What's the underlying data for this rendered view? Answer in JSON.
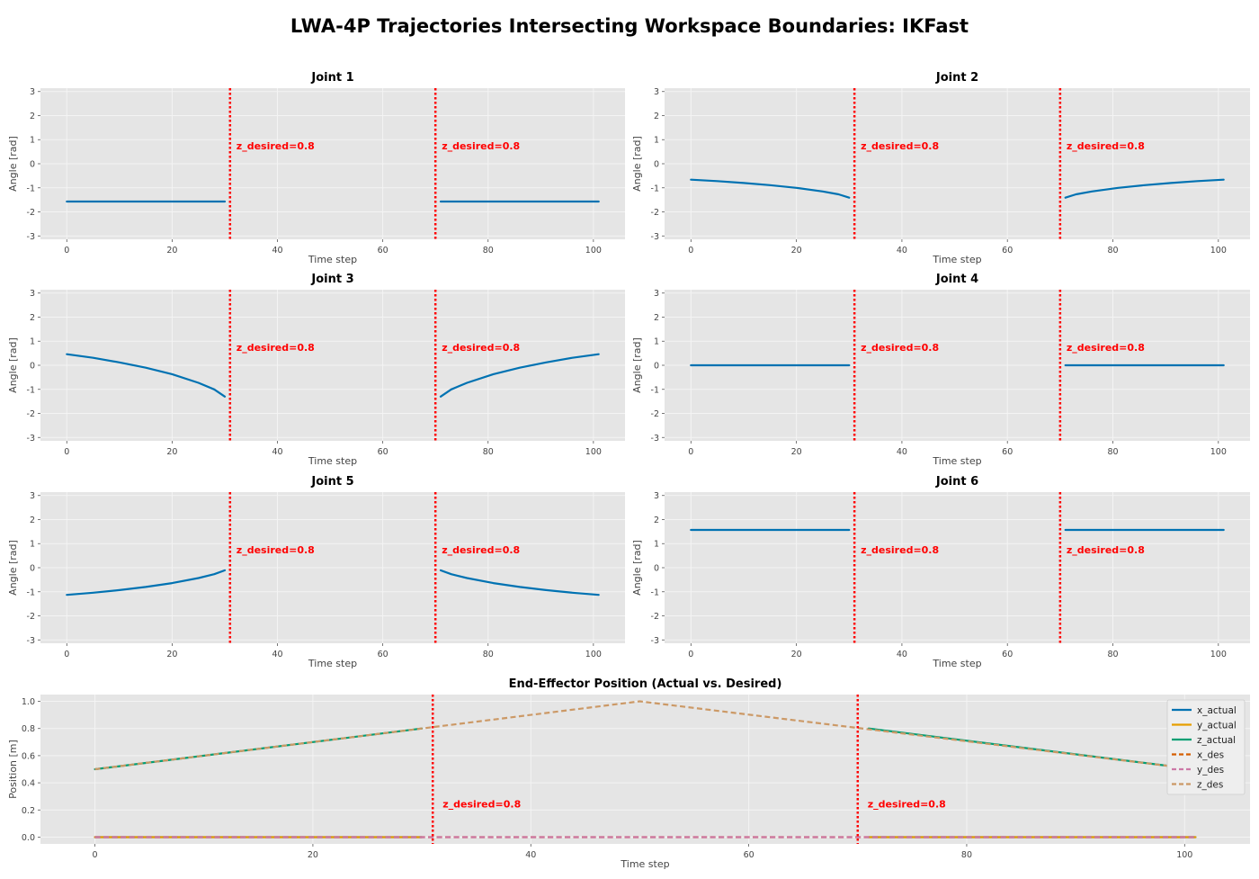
{
  "title": "LWA-4P Trajectories Intersecting Workspace Boundaries: IKFast",
  "colors": {
    "axes_bg": "#e5e5e5",
    "grid": "#f4f4f4",
    "actual": "#0072b2",
    "boundary": "#ff0000",
    "x_actual": "#0072b2",
    "y_actual": "#e69f00",
    "z_actual": "#009e73",
    "x_des": "#d55e00",
    "y_des": "#cc79a7",
    "z_des": "#cc9966"
  },
  "chart_data": [
    {
      "type": "line",
      "title": "Joint 1",
      "xlabel": "Time step",
      "ylabel": "Angle [rad]",
      "xlim": [
        -5,
        106
      ],
      "ylim": [
        -3.14,
        3.14
      ],
      "xticks": [
        0,
        20,
        40,
        60,
        80,
        100
      ],
      "yticks": [
        3,
        2,
        1,
        0,
        -1,
        -2,
        -3
      ],
      "grid": true,
      "boundaries": [
        {
          "x": 31,
          "label": "z_desired=0.8"
        },
        {
          "x": 70,
          "label": "z_desired=0.8"
        }
      ],
      "series": [
        {
          "segments": [
            {
              "x": [
                0,
                30
              ],
              "y": [
                -1.57,
                -1.57
              ]
            },
            {
              "x": [
                71,
                101
              ],
              "y": [
                -1.57,
                -1.57
              ]
            }
          ]
        }
      ]
    },
    {
      "type": "line",
      "title": "Joint 2",
      "xlabel": "Time step",
      "ylabel": "Angle [rad]",
      "xlim": [
        -5,
        106
      ],
      "ylim": [
        -3.14,
        3.14
      ],
      "xticks": [
        0,
        20,
        40,
        60,
        80,
        100
      ],
      "yticks": [
        3,
        2,
        1,
        0,
        -1,
        -2,
        -3
      ],
      "grid": true,
      "boundaries": [
        {
          "x": 31,
          "label": "z_desired=0.8"
        },
        {
          "x": 70,
          "label": "z_desired=0.8"
        }
      ],
      "series": [
        {
          "segments": [
            {
              "x": [
                0,
                5,
                10,
                15,
                20,
                25,
                28,
                30
              ],
              "y": [
                -0.66,
                -0.72,
                -0.8,
                -0.89,
                -1.0,
                -1.15,
                -1.27,
                -1.41
              ]
            },
            {
              "x": [
                71,
                73,
                76,
                81,
                86,
                91,
                96,
                101
              ],
              "y": [
                -1.41,
                -1.27,
                -1.15,
                -1.0,
                -0.89,
                -0.8,
                -0.72,
                -0.66
              ]
            }
          ]
        }
      ]
    },
    {
      "type": "line",
      "title": "Joint 3",
      "xlabel": "Time step",
      "ylabel": "Angle [rad]",
      "xlim": [
        -5,
        106
      ],
      "ylim": [
        -3.14,
        3.14
      ],
      "xticks": [
        0,
        20,
        40,
        60,
        80,
        100
      ],
      "yticks": [
        3,
        2,
        1,
        0,
        -1,
        -2,
        -3
      ],
      "grid": true,
      "boundaries": [
        {
          "x": 31,
          "label": "z_desired=0.8"
        },
        {
          "x": 70,
          "label": "z_desired=0.8"
        }
      ],
      "series": [
        {
          "segments": [
            {
              "x": [
                0,
                5,
                10,
                15,
                20,
                25,
                28,
                30
              ],
              "y": [
                0.46,
                0.31,
                0.12,
                -0.1,
                -0.37,
                -0.73,
                -1.0,
                -1.3
              ]
            },
            {
              "x": [
                71,
                73,
                76,
                81,
                86,
                91,
                96,
                101
              ],
              "y": [
                -1.3,
                -1.0,
                -0.73,
                -0.37,
                -0.1,
                0.12,
                0.31,
                0.46
              ]
            }
          ]
        }
      ]
    },
    {
      "type": "line",
      "title": "Joint 4",
      "xlabel": "Time step",
      "ylabel": "Angle [rad]",
      "xlim": [
        -5,
        106
      ],
      "ylim": [
        -3.14,
        3.14
      ],
      "xticks": [
        0,
        20,
        40,
        60,
        80,
        100
      ],
      "yticks": [
        3,
        2,
        1,
        0,
        -1,
        -2,
        -3
      ],
      "grid": true,
      "boundaries": [
        {
          "x": 31,
          "label": "z_desired=0.8"
        },
        {
          "x": 70,
          "label": "z_desired=0.8"
        }
      ],
      "series": [
        {
          "segments": [
            {
              "x": [
                0,
                30
              ],
              "y": [
                0,
                0
              ]
            },
            {
              "x": [
                71,
                101
              ],
              "y": [
                0,
                0
              ]
            }
          ]
        }
      ]
    },
    {
      "type": "line",
      "title": "Joint 5",
      "xlabel": "Time step",
      "ylabel": "Angle [rad]",
      "xlim": [
        -5,
        106
      ],
      "ylim": [
        -3.14,
        3.14
      ],
      "xticks": [
        0,
        20,
        40,
        60,
        80,
        100
      ],
      "yticks": [
        3,
        2,
        1,
        0,
        -1,
        -2,
        -3
      ],
      "grid": true,
      "boundaries": [
        {
          "x": 31,
          "label": "z_desired=0.8"
        },
        {
          "x": 70,
          "label": "z_desired=0.8"
        }
      ],
      "series": [
        {
          "segments": [
            {
              "x": [
                0,
                5,
                10,
                15,
                20,
                25,
                28,
                30
              ],
              "y": [
                -1.13,
                -1.04,
                -0.93,
                -0.8,
                -0.64,
                -0.43,
                -0.27,
                -0.11
              ]
            },
            {
              "x": [
                71,
                73,
                76,
                81,
                86,
                91,
                96,
                101
              ],
              "y": [
                -0.11,
                -0.27,
                -0.43,
                -0.64,
                -0.8,
                -0.93,
                -1.04,
                -1.13
              ]
            }
          ]
        }
      ]
    },
    {
      "type": "line",
      "title": "Joint 6",
      "xlabel": "Time step",
      "ylabel": "Angle [rad]",
      "xlim": [
        -5,
        106
      ],
      "ylim": [
        -3.14,
        3.14
      ],
      "xticks": [
        0,
        20,
        40,
        60,
        80,
        100
      ],
      "yticks": [
        3,
        2,
        1,
        0,
        -1,
        -2,
        -3
      ],
      "grid": true,
      "boundaries": [
        {
          "x": 31,
          "label": "z_desired=0.8"
        },
        {
          "x": 70,
          "label": "z_desired=0.8"
        }
      ],
      "series": [
        {
          "segments": [
            {
              "x": [
                0,
                30
              ],
              "y": [
                1.57,
                1.57
              ]
            },
            {
              "x": [
                71,
                101
              ],
              "y": [
                1.57,
                1.57
              ]
            }
          ]
        }
      ]
    },
    {
      "type": "line",
      "title": "End-Effector Position (Actual vs. Desired)",
      "xlabel": "Time step",
      "ylabel": "Position [m]",
      "xlim": [
        -5,
        106
      ],
      "ylim": [
        -0.05,
        1.05
      ],
      "xticks": [
        0,
        20,
        40,
        60,
        80,
        100
      ],
      "yticks": [
        1.0,
        0.8,
        0.6,
        0.4,
        0.2,
        0.0
      ],
      "ytick_labels": [
        "1.0",
        "0.8",
        "0.6",
        "0.4",
        "0.2",
        "0.0"
      ],
      "grid": true,
      "legend": "top-right",
      "boundaries": [
        {
          "x": 31,
          "label": "z_desired=0.8"
        },
        {
          "x": 70,
          "label": "z_desired=0.8"
        }
      ],
      "series": [
        {
          "name": "x_actual",
          "color": "x_actual",
          "dash": false,
          "segments": [
            {
              "x": [
                0,
                30
              ],
              "y": [
                0,
                0
              ]
            },
            {
              "x": [
                71,
                101
              ],
              "y": [
                0,
                0
              ]
            }
          ]
        },
        {
          "name": "y_actual",
          "color": "y_actual",
          "dash": false,
          "segments": [
            {
              "x": [
                0,
                30
              ],
              "y": [
                0,
                0
              ]
            },
            {
              "x": [
                71,
                101
              ],
              "y": [
                0,
                0
              ]
            }
          ]
        },
        {
          "name": "z_actual",
          "color": "z_actual",
          "dash": false,
          "segments": [
            {
              "x": [
                0,
                30
              ],
              "y": [
                0.5,
                0.8
              ]
            },
            {
              "x": [
                71,
                101
              ],
              "y": [
                0.8,
                0.5
              ]
            }
          ]
        },
        {
          "name": "x_des",
          "color": "x_des",
          "dash": true,
          "segments": [
            {
              "x": [
                0,
                101
              ],
              "y": [
                0,
                0
              ]
            }
          ]
        },
        {
          "name": "y_des",
          "color": "y_des",
          "dash": true,
          "segments": [
            {
              "x": [
                0,
                101
              ],
              "y": [
                0,
                0
              ]
            }
          ]
        },
        {
          "name": "z_des",
          "color": "z_des",
          "dash": true,
          "segments": [
            {
              "x": [
                0,
                50,
                101
              ],
              "y": [
                0.5,
                1.0,
                0.5
              ]
            }
          ]
        }
      ]
    }
  ]
}
